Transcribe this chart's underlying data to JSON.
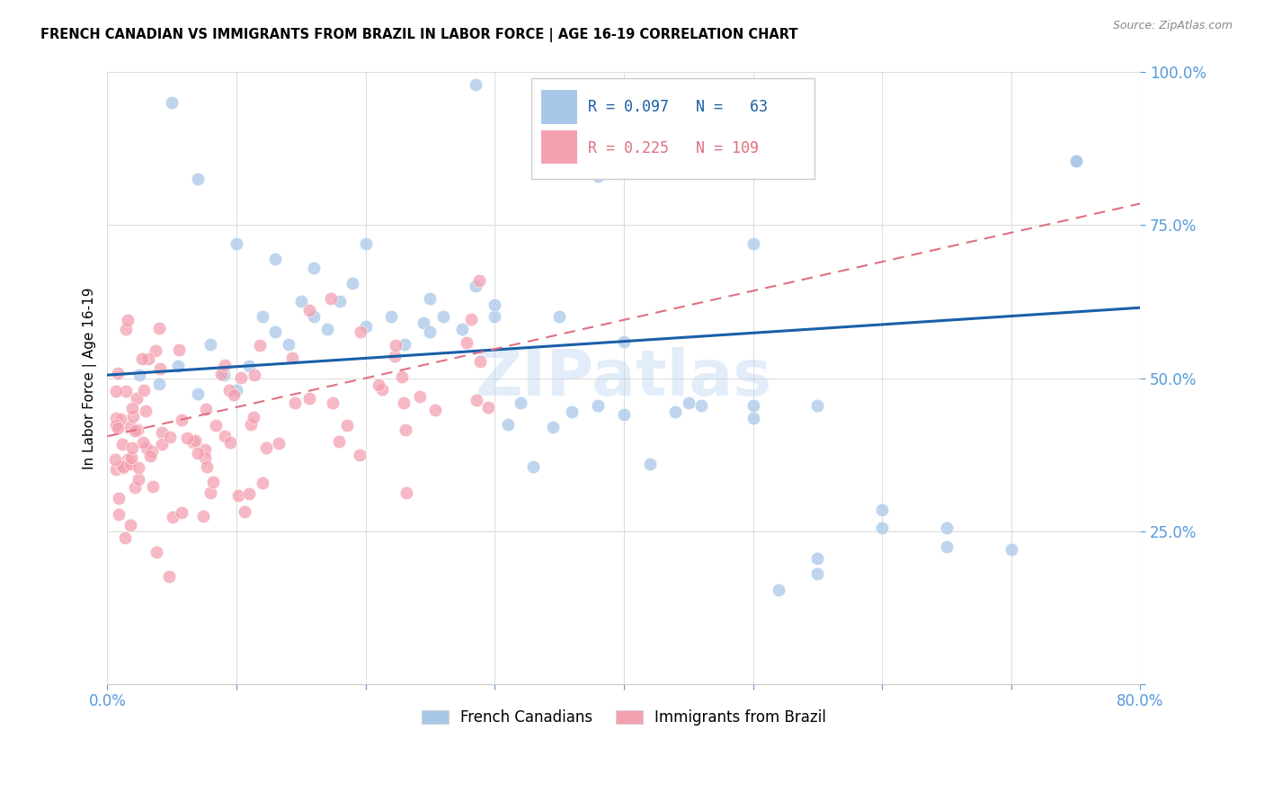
{
  "title": "FRENCH CANADIAN VS IMMIGRANTS FROM BRAZIL IN LABOR FORCE | AGE 16-19 CORRELATION CHART",
  "source": "Source: ZipAtlas.com",
  "ylabel": "In Labor Force | Age 16-19",
  "x_min": 0.0,
  "x_max": 0.8,
  "y_min": 0.0,
  "y_max": 1.0,
  "blue_R": 0.097,
  "blue_N": 63,
  "pink_R": 0.225,
  "pink_N": 109,
  "blue_color": "#a8c8e8",
  "pink_color": "#f4a0b0",
  "blue_line_color": "#1a5fa8",
  "pink_line_color": "#e07080",
  "tick_color": "#5599dd",
  "watermark": "ZIPatlas",
  "blue_line_x0": 0.0,
  "blue_line_y0": 0.505,
  "blue_line_x1": 0.8,
  "blue_line_y1": 0.615,
  "pink_line_x0": 0.0,
  "pink_line_y0": 0.405,
  "pink_line_x1": 0.8,
  "pink_line_y1": 0.785
}
